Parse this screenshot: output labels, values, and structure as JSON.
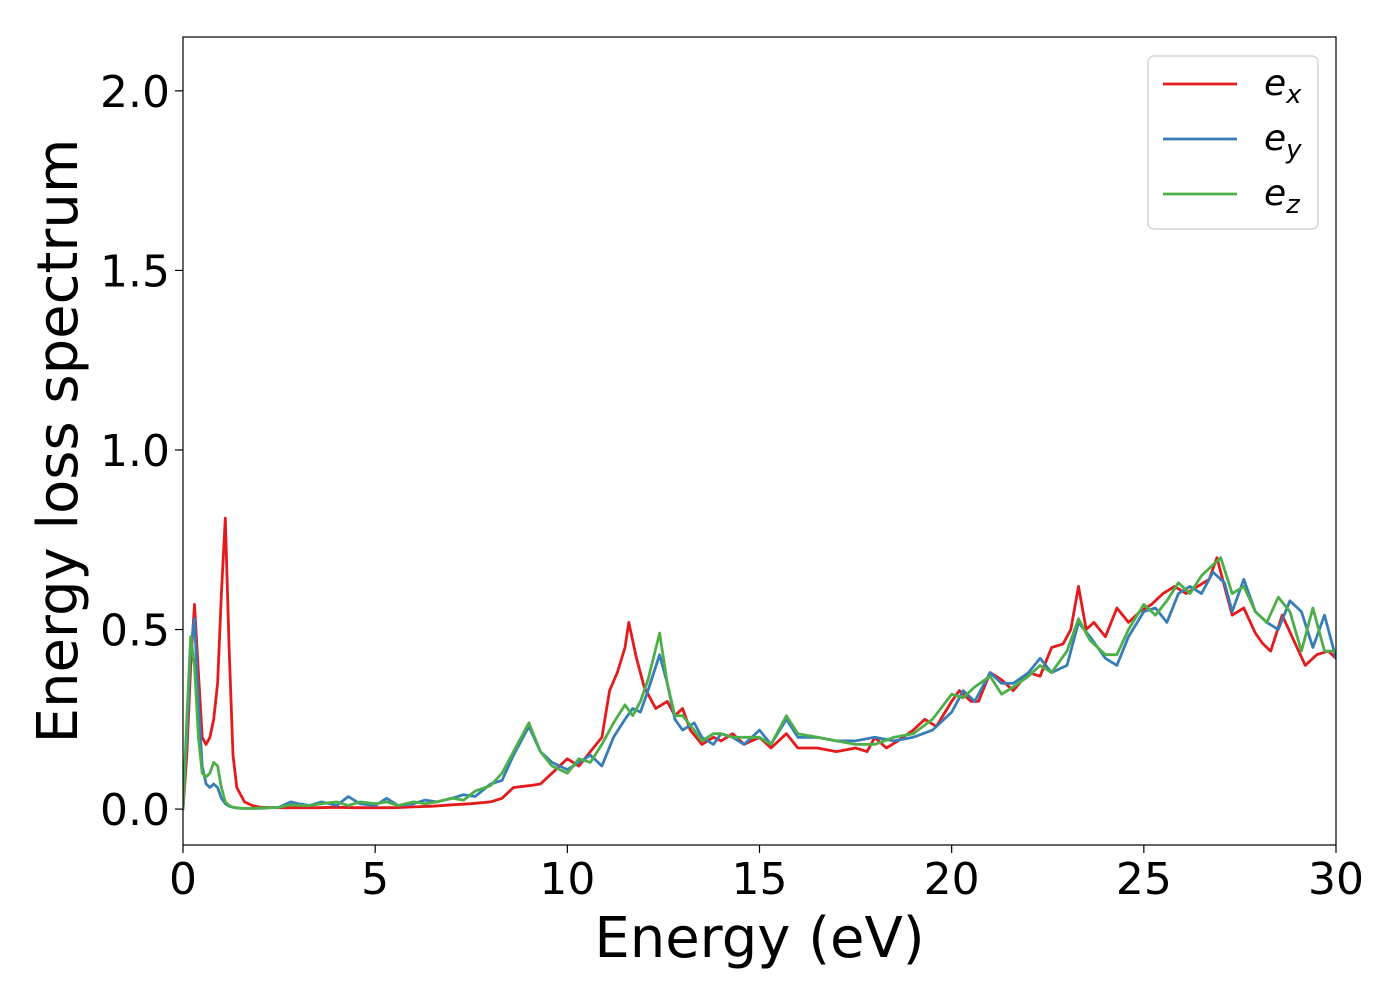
{
  "chart_data": {
    "type": "line",
    "title": "",
    "xlabel": "Energy (eV)",
    "ylabel": "Energy loss spectrum",
    "xlim": [
      0,
      30
    ],
    "ylim": [
      -0.1,
      2.15
    ],
    "xticks": [
      "0",
      "5",
      "10",
      "15",
      "20",
      "25",
      "30"
    ],
    "yticks": [
      "0.0",
      "0.5",
      "1.0",
      "1.5",
      "2.0"
    ],
    "grid": false,
    "legend_position": "top-right",
    "series": [
      {
        "name": "e_x",
        "label_base": "e",
        "label_sub": "x",
        "color": "#e41a1c",
        "x": [
          0,
          0.1,
          0.2,
          0.3,
          0.4,
          0.5,
          0.6,
          0.7,
          0.8,
          0.9,
          1.0,
          1.1,
          1.2,
          1.3,
          1.4,
          1.6,
          1.8,
          2.0,
          2.5,
          3.0,
          3.5,
          4.0,
          4.5,
          5.0,
          5.5,
          6.0,
          6.5,
          7.0,
          7.5,
          8.0,
          8.3,
          8.6,
          9.0,
          9.3,
          9.6,
          10.0,
          10.3,
          10.6,
          10.9,
          11.1,
          11.3,
          11.5,
          11.6,
          11.8,
          12.0,
          12.3,
          12.6,
          12.8,
          13.0,
          13.2,
          13.5,
          13.8,
          14.0,
          14.3,
          14.6,
          15.0,
          15.3,
          15.7,
          16.0,
          16.5,
          17.0,
          17.5,
          17.8,
          18.0,
          18.3,
          18.6,
          19.0,
          19.3,
          19.6,
          20.0,
          20.2,
          20.5,
          20.7,
          21.0,
          21.3,
          21.6,
          22.0,
          22.3,
          22.6,
          22.9,
          23.1,
          23.3,
          23.5,
          23.7,
          24.0,
          24.3,
          24.6,
          24.9,
          25.2,
          25.5,
          25.8,
          26.1,
          26.4,
          26.7,
          26.9,
          27.1,
          27.3,
          27.6,
          27.9,
          28.1,
          28.3,
          28.6,
          28.9,
          29.2,
          29.5,
          29.8,
          30.0
        ],
        "y": [
          0.0,
          0.15,
          0.4,
          0.57,
          0.38,
          0.2,
          0.18,
          0.2,
          0.25,
          0.35,
          0.6,
          0.81,
          0.45,
          0.15,
          0.06,
          0.02,
          0.01,
          0.005,
          0.004,
          0.004,
          0.004,
          0.005,
          0.004,
          0.004,
          0.004,
          0.006,
          0.008,
          0.012,
          0.015,
          0.02,
          0.03,
          0.06,
          0.065,
          0.07,
          0.1,
          0.14,
          0.12,
          0.16,
          0.2,
          0.33,
          0.38,
          0.45,
          0.52,
          0.42,
          0.34,
          0.28,
          0.3,
          0.26,
          0.28,
          0.22,
          0.18,
          0.2,
          0.19,
          0.21,
          0.18,
          0.2,
          0.17,
          0.21,
          0.17,
          0.17,
          0.16,
          0.17,
          0.16,
          0.2,
          0.17,
          0.19,
          0.22,
          0.25,
          0.23,
          0.3,
          0.33,
          0.3,
          0.3,
          0.38,
          0.36,
          0.33,
          0.38,
          0.37,
          0.45,
          0.46,
          0.5,
          0.62,
          0.5,
          0.52,
          0.48,
          0.56,
          0.52,
          0.55,
          0.57,
          0.6,
          0.62,
          0.6,
          0.62,
          0.64,
          0.7,
          0.62,
          0.54,
          0.56,
          0.49,
          0.46,
          0.44,
          0.54,
          0.47,
          0.4,
          0.43,
          0.44,
          0.42
        ]
      },
      {
        "name": "e_y",
        "label_base": "e",
        "label_sub": "y",
        "color": "#377eb8",
        "x": [
          0,
          0.1,
          0.2,
          0.3,
          0.4,
          0.5,
          0.6,
          0.7,
          0.8,
          0.9,
          1.0,
          1.1,
          1.2,
          1.4,
          1.6,
          2.0,
          2.5,
          2.8,
          3.0,
          3.3,
          3.6,
          4.0,
          4.3,
          4.6,
          5.0,
          5.3,
          5.6,
          6.0,
          6.3,
          6.6,
          7.0,
          7.3,
          7.6,
          8.0,
          8.3,
          8.6,
          9.0,
          9.3,
          9.6,
          10.0,
          10.3,
          10.6,
          10.9,
          11.2,
          11.5,
          11.7,
          11.9,
          12.1,
          12.4,
          12.6,
          12.8,
          13.0,
          13.3,
          13.5,
          13.8,
          14.0,
          14.3,
          14.6,
          15.0,
          15.3,
          15.7,
          16.0,
          16.5,
          17.0,
          17.5,
          18.0,
          18.5,
          19.0,
          19.5,
          20.0,
          20.3,
          20.6,
          21.0,
          21.3,
          21.6,
          22.0,
          22.3,
          22.6,
          23.0,
          23.3,
          23.6,
          24.0,
          24.3,
          24.6,
          25.0,
          25.3,
          25.6,
          25.9,
          26.2,
          26.5,
          26.8,
          27.1,
          27.3,
          27.6,
          27.9,
          28.2,
          28.5,
          28.8,
          29.1,
          29.4,
          29.7,
          30.0
        ],
        "y": [
          0.0,
          0.2,
          0.45,
          0.53,
          0.3,
          0.12,
          0.07,
          0.06,
          0.07,
          0.06,
          0.03,
          0.015,
          0.008,
          0.003,
          0.002,
          0.002,
          0.005,
          0.02,
          0.015,
          0.01,
          0.02,
          0.01,
          0.035,
          0.015,
          0.01,
          0.03,
          0.01,
          0.015,
          0.025,
          0.02,
          0.03,
          0.04,
          0.035,
          0.07,
          0.08,
          0.15,
          0.23,
          0.16,
          0.13,
          0.11,
          0.13,
          0.15,
          0.12,
          0.2,
          0.25,
          0.28,
          0.27,
          0.33,
          0.43,
          0.35,
          0.25,
          0.22,
          0.24,
          0.2,
          0.18,
          0.21,
          0.2,
          0.18,
          0.22,
          0.18,
          0.25,
          0.2,
          0.2,
          0.19,
          0.19,
          0.2,
          0.19,
          0.2,
          0.22,
          0.27,
          0.33,
          0.3,
          0.38,
          0.35,
          0.35,
          0.38,
          0.42,
          0.38,
          0.4,
          0.52,
          0.48,
          0.42,
          0.4,
          0.48,
          0.55,
          0.56,
          0.52,
          0.6,
          0.62,
          0.6,
          0.66,
          0.63,
          0.55,
          0.64,
          0.55,
          0.52,
          0.5,
          0.58,
          0.55,
          0.45,
          0.54,
          0.42
        ]
      },
      {
        "name": "e_z",
        "label_base": "e",
        "label_sub": "z",
        "color": "#4daf4a",
        "x": [
          0,
          0.1,
          0.2,
          0.3,
          0.4,
          0.5,
          0.6,
          0.7,
          0.8,
          0.9,
          1.0,
          1.1,
          1.2,
          1.3,
          1.5,
          1.8,
          2.0,
          2.5,
          2.8,
          3.0,
          3.3,
          3.6,
          4.0,
          4.3,
          4.6,
          5.0,
          5.3,
          5.6,
          6.0,
          6.3,
          6.6,
          7.0,
          7.3,
          7.6,
          8.0,
          8.3,
          8.6,
          9.0,
          9.3,
          9.6,
          10.0,
          10.3,
          10.6,
          10.9,
          11.2,
          11.5,
          11.7,
          11.9,
          12.1,
          12.4,
          12.6,
          12.8,
          13.0,
          13.3,
          13.5,
          13.8,
          14.0,
          14.3,
          14.6,
          15.0,
          15.3,
          15.7,
          16.0,
          16.5,
          17.0,
          17.5,
          18.0,
          18.5,
          19.0,
          19.5,
          20.0,
          20.3,
          20.6,
          21.0,
          21.3,
          21.6,
          22.0,
          22.3,
          22.6,
          23.0,
          23.3,
          23.6,
          24.0,
          24.3,
          24.6,
          25.0,
          25.3,
          25.6,
          25.9,
          26.2,
          26.5,
          26.8,
          27.0,
          27.3,
          27.6,
          27.9,
          28.2,
          28.5,
          28.8,
          29.1,
          29.4,
          29.7,
          30.0
        ],
        "y": [
          0.0,
          0.25,
          0.48,
          0.4,
          0.2,
          0.1,
          0.09,
          0.1,
          0.13,
          0.12,
          0.06,
          0.02,
          0.01,
          0.005,
          0.002,
          0.002,
          0.003,
          0.005,
          0.012,
          0.01,
          0.01,
          0.015,
          0.02,
          0.01,
          0.02,
          0.015,
          0.02,
          0.01,
          0.02,
          0.015,
          0.02,
          0.03,
          0.025,
          0.05,
          0.065,
          0.1,
          0.16,
          0.24,
          0.16,
          0.12,
          0.1,
          0.14,
          0.13,
          0.18,
          0.24,
          0.29,
          0.26,
          0.3,
          0.36,
          0.49,
          0.35,
          0.26,
          0.26,
          0.22,
          0.19,
          0.21,
          0.21,
          0.2,
          0.2,
          0.2,
          0.18,
          0.26,
          0.21,
          0.2,
          0.19,
          0.18,
          0.18,
          0.2,
          0.21,
          0.25,
          0.32,
          0.31,
          0.34,
          0.37,
          0.32,
          0.34,
          0.37,
          0.4,
          0.38,
          0.44,
          0.53,
          0.47,
          0.43,
          0.43,
          0.5,
          0.57,
          0.54,
          0.58,
          0.63,
          0.6,
          0.65,
          0.68,
          0.7,
          0.6,
          0.62,
          0.55,
          0.52,
          0.59,
          0.55,
          0.44,
          0.56,
          0.44,
          0.44
        ]
      }
    ]
  }
}
